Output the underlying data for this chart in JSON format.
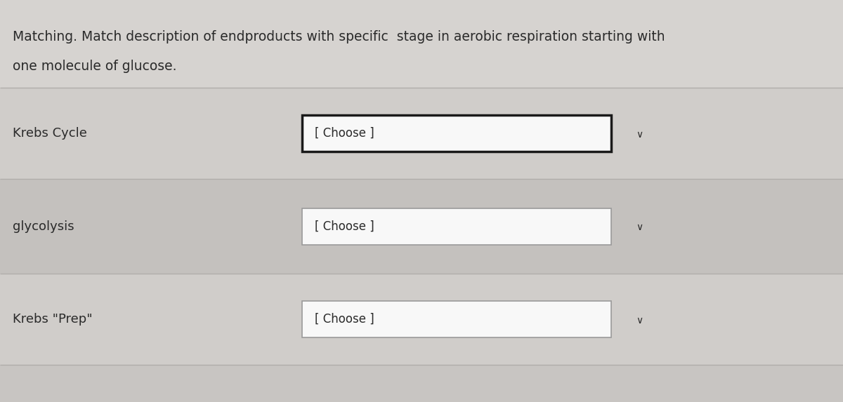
{
  "title_line1": "Matching. Match description of endproducts with specific  stage in aerobic respiration starting with",
  "title_line2": "one molecule of glucose.",
  "bg_color": "#c8c5c2",
  "header_bg": "#d6d3d0",
  "row_bg_light": "#d0cdca",
  "row_bg_dark": "#c4c1be",
  "text_color": "#2a2a2a",
  "box_border_selected": "#1a1a1a",
  "box_border_normal": "#9a9a9a",
  "box_fill": "#f8f8f8",
  "separator_color": "#b0adaa",
  "rows": [
    {
      "label": "Krebs Cycle",
      "selected": true
    },
    {
      "label": "glycolysis",
      "selected": false
    },
    {
      "label": "Krebs \"Prep\"",
      "selected": false
    }
  ],
  "choose_text": "[ Choose ]",
  "title_fontsize": 13.5,
  "label_fontsize": 13,
  "choose_fontsize": 12,
  "arrow_fontsize": 10
}
